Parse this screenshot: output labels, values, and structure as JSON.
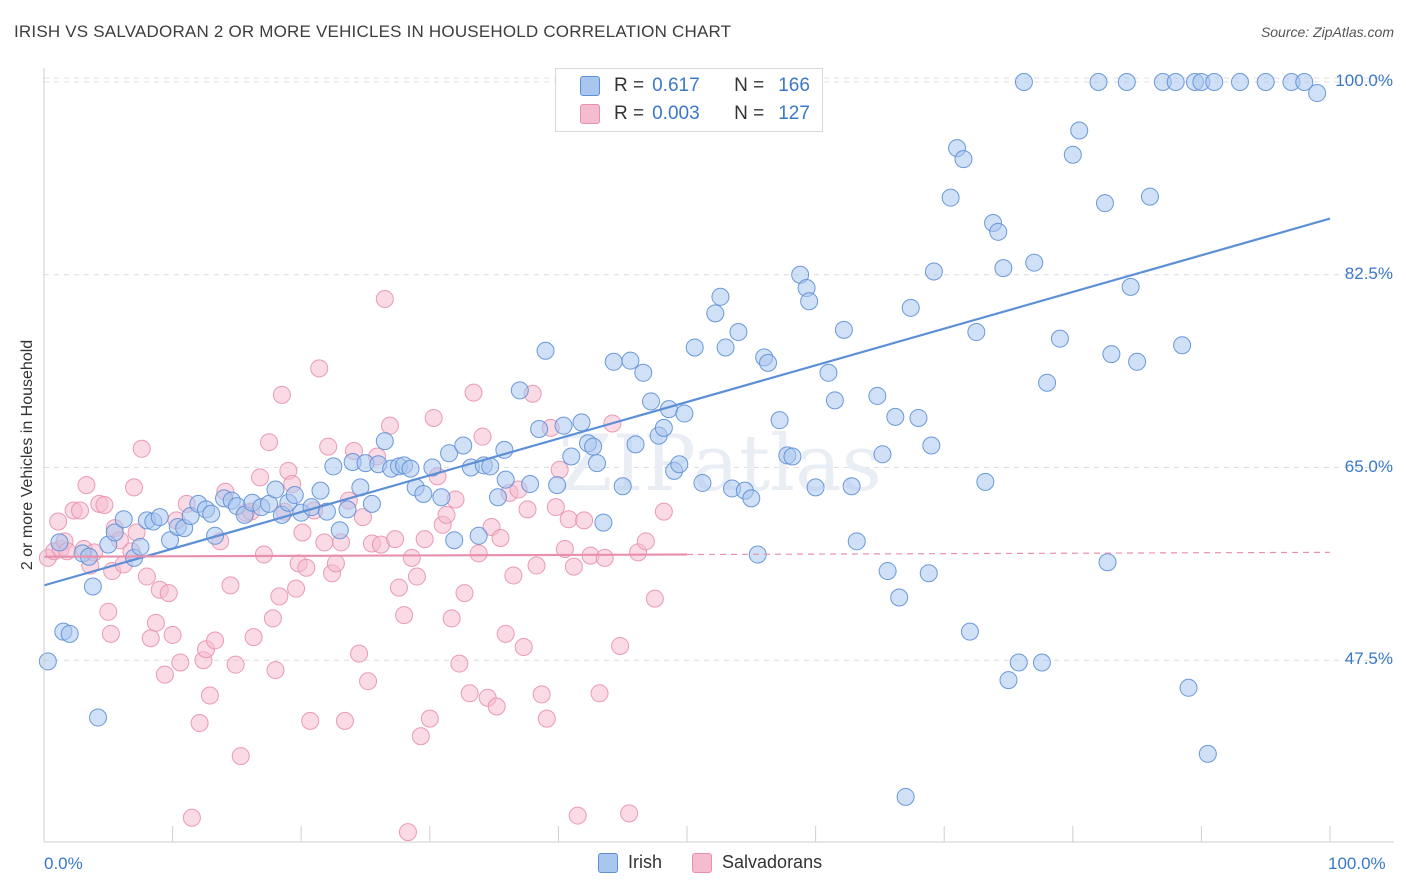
{
  "header": {
    "title": "IRISH VS SALVADORAN 2 OR MORE VEHICLES IN HOUSEHOLD CORRELATION CHART",
    "source": "Source: ZipAtlas.com"
  },
  "watermark": "ZIPatlas",
  "legend": {
    "rows": [
      {
        "r_label": "R =",
        "r_value": "0.617",
        "n_label": "N =",
        "n_value": "166",
        "fill": "#a9c6ee",
        "stroke": "#5d8fd6"
      },
      {
        "r_label": "R =",
        "r_value": "0.003",
        "n_label": "N =",
        "n_value": "127",
        "fill": "#f5bcd0",
        "stroke": "#e891ad"
      }
    ]
  },
  "bottom_legend": [
    {
      "label": "Irish",
      "fill": "#a9c6ee",
      "stroke": "#5d8fd6"
    },
    {
      "label": "Salvadorans",
      "fill": "#f5bcd0",
      "stroke": "#e891ad"
    }
  ],
  "chart_data": {
    "type": "scatter",
    "title": "IRISH VS SALVADORAN 2 OR MORE VEHICLES IN HOUSEHOLD CORRELATION CHART",
    "xlabel": "",
    "ylabel": "2 or more Vehicles in Household",
    "x_tick_labels": [
      "0.0%",
      "100.0%"
    ],
    "y_tick_labels": [
      "47.5%",
      "65.0%",
      "82.5%",
      "100.0%"
    ],
    "y_ticks": [
      47.5,
      65.0,
      82.5,
      100.0
    ],
    "xlim": [
      0,
      100
    ],
    "ylim": [
      31,
      102
    ],
    "grid": true,
    "legend_position": "top-center",
    "series": [
      {
        "name": "Irish",
        "color": "#5d8fd6",
        "fill": "#a9c6ee",
        "trend": {
          "x": [
            0,
            100
          ],
          "y": [
            54.3,
            87.6
          ],
          "style": "solid"
        },
        "points": [
          [
            0.3,
            47.4
          ],
          [
            1.2,
            58.2
          ],
          [
            1.5,
            50.1
          ],
          [
            2.0,
            49.9
          ],
          [
            3.0,
            57.2
          ],
          [
            3.5,
            56.9
          ],
          [
            3.8,
            54.2
          ],
          [
            4.2,
            42.3
          ],
          [
            5.0,
            58.0
          ],
          [
            5.5,
            59.1
          ],
          [
            6.2,
            60.3
          ],
          [
            7.0,
            56.8
          ],
          [
            7.5,
            57.8
          ],
          [
            8.0,
            60.2
          ],
          [
            8.5,
            60.1
          ],
          [
            9.0,
            60.5
          ],
          [
            9.8,
            58.4
          ],
          [
            10.4,
            59.6
          ],
          [
            10.9,
            59.5
          ],
          [
            11.4,
            60.6
          ],
          [
            12.0,
            61.7
          ],
          [
            12.6,
            61.2
          ],
          [
            13.0,
            60.8
          ],
          [
            13.3,
            58.8
          ],
          [
            14.0,
            62.2
          ],
          [
            14.6,
            62.0
          ],
          [
            15.0,
            61.5
          ],
          [
            15.6,
            60.7
          ],
          [
            16.2,
            61.8
          ],
          [
            16.9,
            61.4
          ],
          [
            17.5,
            61.7
          ],
          [
            18.0,
            63.0
          ],
          [
            18.5,
            60.7
          ],
          [
            19.0,
            61.8
          ],
          [
            19.5,
            62.5
          ],
          [
            20.0,
            60.9
          ],
          [
            20.8,
            61.4
          ],
          [
            21.5,
            62.9
          ],
          [
            22.0,
            61.0
          ],
          [
            22.5,
            65.1
          ],
          [
            23.0,
            59.3
          ],
          [
            23.6,
            61.2
          ],
          [
            24.0,
            65.5
          ],
          [
            24.6,
            63.2
          ],
          [
            25.0,
            65.4
          ],
          [
            25.5,
            61.7
          ],
          [
            26.0,
            65.3
          ],
          [
            26.5,
            67.4
          ],
          [
            27.0,
            64.9
          ],
          [
            27.6,
            65.1
          ],
          [
            28.0,
            65.2
          ],
          [
            28.5,
            64.9
          ],
          [
            28.9,
            63.2
          ],
          [
            29.5,
            62.6
          ],
          [
            30.2,
            65.0
          ],
          [
            30.9,
            62.3
          ],
          [
            31.5,
            66.3
          ],
          [
            31.9,
            58.4
          ],
          [
            32.6,
            67.0
          ],
          [
            33.2,
            65.0
          ],
          [
            33.8,
            58.8
          ],
          [
            34.2,
            65.2
          ],
          [
            34.7,
            65.1
          ],
          [
            35.3,
            62.3
          ],
          [
            35.8,
            66.6
          ],
          [
            35.9,
            63.9
          ],
          [
            37.0,
            72.0
          ],
          [
            37.8,
            63.5
          ],
          [
            38.5,
            68.5
          ],
          [
            39.0,
            75.6
          ],
          [
            39.9,
            63.4
          ],
          [
            40.4,
            68.8
          ],
          [
            41.0,
            66.0
          ],
          [
            41.8,
            69.1
          ],
          [
            42.3,
            67.2
          ],
          [
            42.7,
            66.9
          ],
          [
            43.0,
            65.4
          ],
          [
            43.5,
            60.0
          ],
          [
            44.3,
            74.6
          ],
          [
            45.0,
            63.3
          ],
          [
            45.6,
            74.7
          ],
          [
            46.0,
            67.1
          ],
          [
            46.6,
            73.6
          ],
          [
            47.2,
            71.0
          ],
          [
            47.8,
            67.9
          ],
          [
            48.2,
            68.6
          ],
          [
            48.6,
            70.3
          ],
          [
            49.0,
            64.7
          ],
          [
            49.4,
            65.3
          ],
          [
            49.8,
            69.9
          ],
          [
            50.6,
            75.9
          ],
          [
            51.2,
            63.6
          ],
          [
            52.2,
            79.0
          ],
          [
            52.6,
            80.5
          ],
          [
            53.0,
            75.9
          ],
          [
            53.5,
            63.1
          ],
          [
            54.0,
            77.3
          ],
          [
            54.5,
            62.9
          ],
          [
            55.0,
            62.2
          ],
          [
            55.5,
            57.1
          ],
          [
            56.0,
            75.0
          ],
          [
            56.3,
            74.5
          ],
          [
            57.2,
            69.3
          ],
          [
            57.8,
            66.1
          ],
          [
            58.2,
            66.0
          ],
          [
            58.8,
            82.5
          ],
          [
            59.3,
            81.3
          ],
          [
            59.5,
            80.1
          ],
          [
            60.0,
            63.2
          ],
          [
            61.0,
            73.6
          ],
          [
            61.5,
            71.1
          ],
          [
            62.2,
            77.5
          ],
          [
            62.8,
            63.3
          ],
          [
            63.2,
            58.3
          ],
          [
            64.8,
            71.5
          ],
          [
            65.2,
            66.2
          ],
          [
            65.6,
            55.6
          ],
          [
            66.2,
            69.6
          ],
          [
            66.5,
            53.2
          ],
          [
            67.0,
            35.1
          ],
          [
            67.4,
            79.5
          ],
          [
            68.0,
            69.5
          ],
          [
            68.8,
            55.4
          ],
          [
            69.0,
            67.0
          ],
          [
            69.2,
            82.8
          ],
          [
            70.5,
            89.5
          ],
          [
            71.0,
            94.0
          ],
          [
            71.5,
            93.0
          ],
          [
            72.0,
            50.1
          ],
          [
            72.5,
            77.3
          ],
          [
            73.2,
            63.7
          ],
          [
            73.8,
            87.2
          ],
          [
            74.2,
            86.4
          ],
          [
            74.6,
            83.1
          ],
          [
            75.0,
            45.7
          ],
          [
            75.8,
            47.3
          ],
          [
            76.2,
            100.0
          ],
          [
            77.0,
            83.6
          ],
          [
            77.6,
            47.3
          ],
          [
            78.0,
            72.7
          ],
          [
            79.0,
            76.7
          ],
          [
            80.0,
            93.4
          ],
          [
            80.5,
            95.6
          ],
          [
            82.0,
            100.0
          ],
          [
            82.5,
            89.0
          ],
          [
            82.7,
            56.4
          ],
          [
            83.0,
            75.3
          ],
          [
            84.2,
            100.0
          ],
          [
            84.5,
            81.4
          ],
          [
            85.0,
            74.6
          ],
          [
            86.0,
            89.6
          ],
          [
            87.0,
            100.0
          ],
          [
            88.0,
            100.0
          ],
          [
            88.5,
            76.1
          ],
          [
            89.0,
            45.0
          ],
          [
            89.5,
            100.0
          ],
          [
            90.0,
            100.0
          ],
          [
            90.5,
            39.0
          ],
          [
            91.0,
            100.0
          ],
          [
            93.0,
            100.0
          ],
          [
            95.0,
            100.0
          ],
          [
            97.0,
            100.0
          ],
          [
            98.0,
            100.0
          ],
          [
            99.0,
            99.0
          ]
        ]
      },
      {
        "name": "Salvadorans",
        "color": "#e891ad",
        "fill": "#f5bcd0",
        "trend": {
          "x": [
            0,
            50
          ],
          "y": [
            56.9,
            57.1
          ],
          "style": "solid",
          "extended_to": 100
        },
        "points": [
          [
            0.3,
            56.8
          ],
          [
            0.8,
            57.4
          ],
          [
            1.1,
            60.1
          ],
          [
            1.3,
            57.6
          ],
          [
            1.6,
            58.3
          ],
          [
            1.8,
            57.4
          ],
          [
            2.3,
            61.1
          ],
          [
            2.8,
            61.1
          ],
          [
            3.1,
            57.6
          ],
          [
            3.3,
            63.4
          ],
          [
            3.6,
            56.1
          ],
          [
            3.9,
            57.3
          ],
          [
            4.3,
            61.7
          ],
          [
            4.7,
            61.6
          ],
          [
            5.0,
            51.9
          ],
          [
            5.2,
            49.9
          ],
          [
            5.3,
            55.6
          ],
          [
            5.5,
            59.5
          ],
          [
            5.9,
            58.4
          ],
          [
            6.2,
            56.2
          ],
          [
            6.8,
            57.4
          ],
          [
            7.0,
            63.2
          ],
          [
            7.2,
            59.1
          ],
          [
            7.6,
            66.7
          ],
          [
            8.0,
            55.1
          ],
          [
            8.3,
            49.5
          ],
          [
            8.7,
            50.9
          ],
          [
            9.0,
            53.9
          ],
          [
            9.4,
            46.2
          ],
          [
            9.7,
            53.6
          ],
          [
            10.0,
            49.8
          ],
          [
            10.3,
            60.2
          ],
          [
            10.6,
            47.3
          ],
          [
            11.1,
            61.7
          ],
          [
            11.5,
            33.2
          ],
          [
            12.1,
            41.8
          ],
          [
            12.4,
            47.5
          ],
          [
            12.6,
            48.5
          ],
          [
            12.9,
            44.3
          ],
          [
            13.3,
            49.3
          ],
          [
            13.7,
            58.3
          ],
          [
            14.1,
            62.8
          ],
          [
            14.5,
            54.3
          ],
          [
            14.9,
            47.1
          ],
          [
            15.3,
            38.8
          ],
          [
            15.7,
            60.9
          ],
          [
            16.1,
            61.0
          ],
          [
            16.3,
            49.6
          ],
          [
            16.8,
            64.1
          ],
          [
            17.1,
            57.1
          ],
          [
            17.5,
            67.3
          ],
          [
            17.8,
            51.3
          ],
          [
            18.0,
            46.6
          ],
          [
            18.3,
            53.3
          ],
          [
            18.5,
            71.6
          ],
          [
            18.7,
            61.0
          ],
          [
            19.0,
            64.7
          ],
          [
            19.3,
            63.5
          ],
          [
            19.6,
            54.0
          ],
          [
            19.8,
            56.3
          ],
          [
            20.1,
            59.1
          ],
          [
            20.4,
            55.9
          ],
          [
            20.7,
            42.0
          ],
          [
            21.0,
            61.1
          ],
          [
            21.4,
            74.0
          ],
          [
            21.8,
            58.2
          ],
          [
            22.1,
            66.9
          ],
          [
            22.4,
            55.4
          ],
          [
            22.7,
            56.3
          ],
          [
            23.1,
            58.2
          ],
          [
            23.4,
            42.0
          ],
          [
            23.7,
            62.0
          ],
          [
            24.1,
            66.5
          ],
          [
            24.5,
            48.1
          ],
          [
            24.8,
            60.5
          ],
          [
            25.2,
            45.6
          ],
          [
            25.5,
            58.1
          ],
          [
            25.9,
            66.0
          ],
          [
            26.2,
            58.0
          ],
          [
            26.5,
            80.3
          ],
          [
            26.9,
            68.8
          ],
          [
            27.3,
            58.5
          ],
          [
            27.6,
            54.1
          ],
          [
            28.0,
            51.6
          ],
          [
            28.3,
            31.9
          ],
          [
            28.6,
            56.8
          ],
          [
            29.0,
            55.1
          ],
          [
            29.3,
            40.6
          ],
          [
            29.6,
            58.5
          ],
          [
            30.0,
            42.2
          ],
          [
            30.3,
            69.5
          ],
          [
            30.6,
            64.2
          ],
          [
            31.0,
            59.8
          ],
          [
            31.3,
            60.7
          ],
          [
            31.7,
            51.3
          ],
          [
            32.0,
            62.1
          ],
          [
            32.3,
            47.2
          ],
          [
            32.7,
            53.6
          ],
          [
            33.1,
            44.5
          ],
          [
            33.4,
            71.8
          ],
          [
            33.8,
            57.2
          ],
          [
            34.1,
            67.8
          ],
          [
            34.5,
            44.1
          ],
          [
            34.8,
            59.6
          ],
          [
            35.2,
            43.3
          ],
          [
            35.5,
            58.6
          ],
          [
            35.9,
            49.9
          ],
          [
            36.2,
            62.7
          ],
          [
            36.5,
            55.2
          ],
          [
            36.9,
            63.0
          ],
          [
            37.3,
            48.7
          ],
          [
            37.6,
            61.2
          ],
          [
            38.0,
            71.7
          ],
          [
            38.3,
            56.1
          ],
          [
            38.7,
            44.4
          ],
          [
            39.1,
            42.2
          ],
          [
            39.4,
            68.6
          ],
          [
            39.8,
            61.4
          ],
          [
            40.1,
            64.8
          ],
          [
            40.5,
            57.6
          ],
          [
            40.8,
            60.3
          ],
          [
            41.2,
            56.0
          ],
          [
            41.5,
            33.4
          ],
          [
            42.0,
            60.2
          ],
          [
            42.5,
            57.0
          ],
          [
            43.2,
            44.5
          ],
          [
            43.6,
            56.8
          ],
          [
            44.2,
            69.0
          ],
          [
            44.8,
            48.8
          ],
          [
            45.5,
            33.6
          ],
          [
            46.2,
            57.3
          ],
          [
            46.8,
            58.3
          ],
          [
            47.5,
            53.1
          ],
          [
            48.2,
            61.0
          ]
        ]
      }
    ]
  }
}
